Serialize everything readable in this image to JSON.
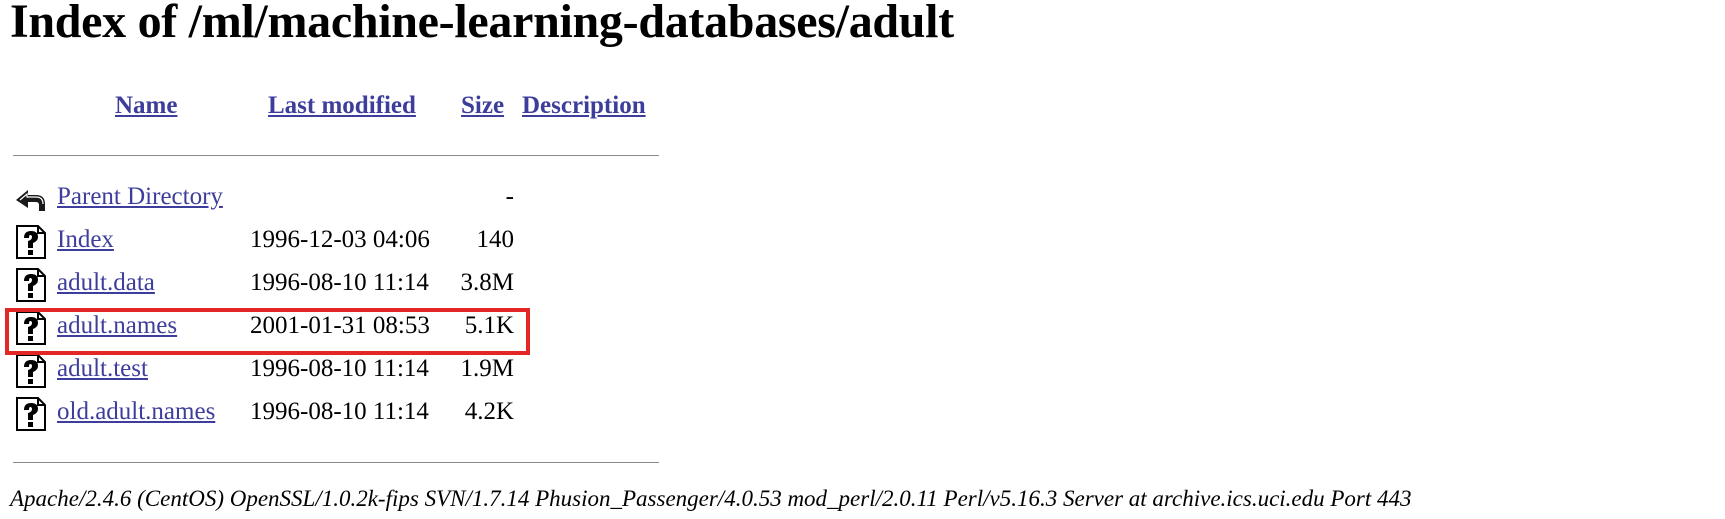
{
  "page": {
    "title": "Index of /ml/machine-learning-databases/adult"
  },
  "columns": {
    "name": "Name",
    "last_modified": "Last modified",
    "size": "Size",
    "description": "Description"
  },
  "entries": [
    {
      "icon": "back-arrow-icon",
      "name": "Parent Directory",
      "modified": "",
      "size": "-"
    },
    {
      "icon": "unknown-file-icon",
      "name": "Index",
      "modified": "1996-12-03 04:06",
      "size": "140"
    },
    {
      "icon": "unknown-file-icon",
      "name": "adult.data",
      "modified": "1996-08-10 11:14",
      "size": "3.8M"
    },
    {
      "icon": "unknown-file-icon",
      "name": "adult.names",
      "modified": "2001-01-31 08:53",
      "size": "5.1K"
    },
    {
      "icon": "unknown-file-icon",
      "name": "adult.test",
      "modified": "1996-08-10 11:14",
      "size": "1.9M"
    },
    {
      "icon": "unknown-file-icon",
      "name": "old.adult.names",
      "modified": "1996-08-10 11:14",
      "size": "4.2K"
    }
  ],
  "highlight": {
    "entry": "adult.names",
    "color": "#e32626"
  },
  "footer": {
    "server_signature": "Apache/2.4.6 (CentOS) OpenSSL/1.0.2k-fips SVN/1.7.14 Phusion_Passenger/4.0.53 mod_perl/2.0.11 Perl/v5.16.3 Server at archive.ics.uci.edu Port 443"
  },
  "colors": {
    "link": "#3d3d9c",
    "text": "#000000",
    "rule": "#8a8a8a"
  }
}
